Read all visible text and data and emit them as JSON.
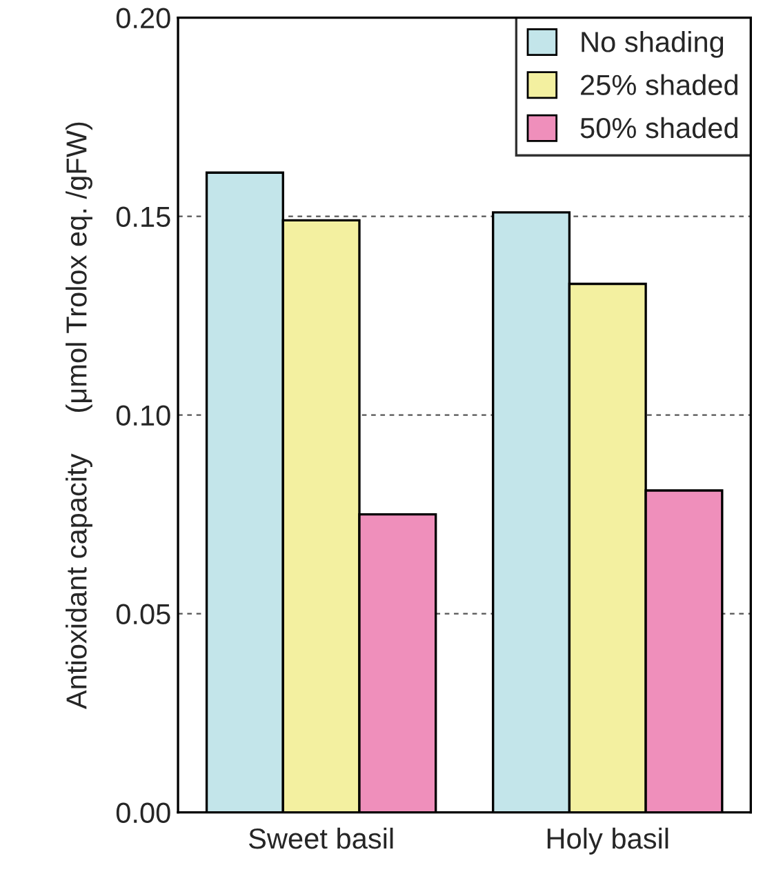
{
  "chart_data": {
    "type": "bar",
    "ylabel": "Antioxidant capacity     (μmol Trolox eq. /gFW)",
    "categories": [
      "Sweet basil",
      "Holy basil"
    ],
    "series": [
      {
        "name": "No shading",
        "color": "#c3e5ea",
        "values": [
          0.161,
          0.151
        ]
      },
      {
        "name": "25% shaded",
        "color": "#f3f0a0",
        "values": [
          0.149,
          0.133
        ]
      },
      {
        "name": "50% shaded",
        "color": "#ef8fbb",
        "values": [
          0.075,
          0.081
        ]
      }
    ],
    "ylim": [
      0,
      0.2
    ],
    "yticks": [
      {
        "value": 0,
        "label": "0.00"
      },
      {
        "value": 0.05,
        "label": "0.05"
      },
      {
        "value": 0.1,
        "label": "0.10"
      },
      {
        "value": 0.15,
        "label": "0.15"
      },
      {
        "value": 0.2,
        "label": "0.20"
      }
    ],
    "grid": "y",
    "legend": "top right"
  }
}
